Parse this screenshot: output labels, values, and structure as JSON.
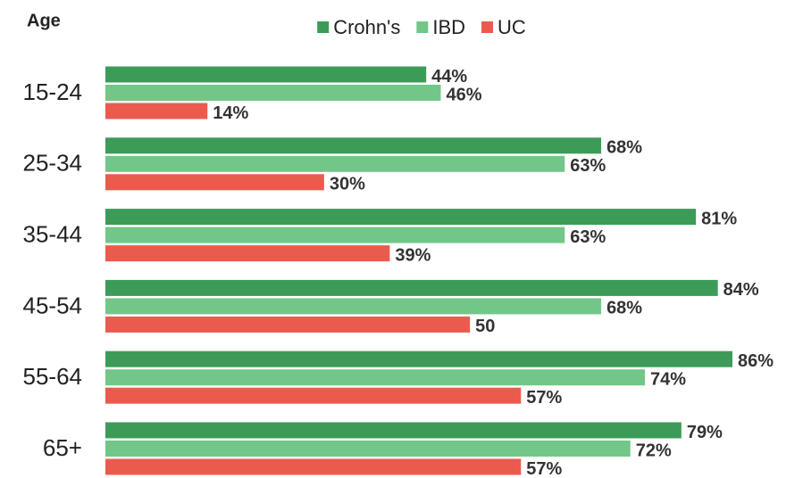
{
  "chart_data": {
    "type": "hbar",
    "y_label": "Age",
    "categories": [
      "15-24",
      "25-34",
      "35-44",
      "45-54",
      "55-64",
      "65+"
    ],
    "series": [
      {
        "name": "Crohn's",
        "color": "#3d9b58",
        "values": [
          44,
          68,
          81,
          84,
          86,
          79
        ],
        "value_labels": [
          "44%",
          "68%",
          "81%",
          "84%",
          "86%",
          "79%"
        ]
      },
      {
        "name": "IBD",
        "color": "#72c788",
        "values": [
          46,
          63,
          63,
          68,
          74,
          72
        ],
        "value_labels": [
          "46%",
          "63%",
          "63%",
          "68%",
          "74%",
          "72%"
        ]
      },
      {
        "name": "UC",
        "color": "#eb5b4d",
        "values": [
          14,
          30,
          39,
          50,
          57,
          57
        ],
        "value_labels": [
          "14%",
          "30%",
          "39%",
          "50",
          "57%",
          "57%"
        ]
      }
    ],
    "legend": "top"
  }
}
